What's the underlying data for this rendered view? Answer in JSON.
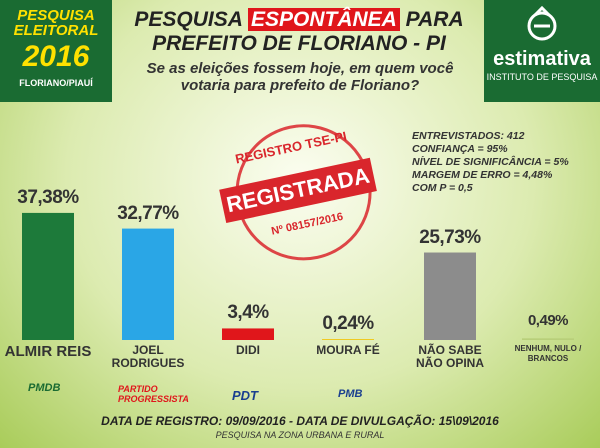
{
  "header": {
    "badge_top": "PESQUISA ELEITORAL",
    "badge_year": "2016",
    "badge_place": "FLORIANO/PIAUÍ",
    "title_start": "PESQUISA",
    "title_highlight": "ESPONTÂNEA",
    "title_end": "PARA",
    "title_line2": "PREFEITO DE FLORIANO - PI",
    "question": "Se as eleições fossem hoje, em quem você votaria para prefeito de Floriano?",
    "brand": "estimativa",
    "brand_sub": "INSTITUTO DE PESQUISA"
  },
  "stamp": {
    "top": "REGISTRO TSE-PI",
    "main": "REGISTRADA",
    "number": "Nº 08157/2016"
  },
  "stats": [
    "ENTREVISTADOS: 412",
    "CONFIANÇA = 95%",
    "NÍVEL DE SIGNIFICÂNCIA = 5%",
    "MARGEM DE ERRO = 4,48%",
    "COM P = 0,5"
  ],
  "parties": [
    "PMDB",
    "PARTIDO PROGRESSISTA",
    "PDT",
    "PMB"
  ],
  "footer": {
    "dates": "DATA DE REGISTRO: 09/09/2016 - DATA DE DIVULGAÇÃO: 15\\09\\2016",
    "note": "PESQUISA NA ZONA URBANA E RURAL"
  },
  "chart_data": {
    "type": "bar",
    "categories": [
      "ALMIR REIS",
      "JOEL RODRIGUES",
      "DIDI",
      "MOURA FÉ",
      "NÃO SABE NÃO OPINA",
      "NENHUM, NULO / BRANCOS"
    ],
    "values": [
      37.38,
      32.77,
      3.4,
      0.24,
      25.73,
      0.49
    ],
    "value_labels": [
      "37,38%",
      "32,77%",
      "3,4%",
      "0,24%",
      "25,73%",
      "0,49%"
    ],
    "colors": [
      "#1d7a3a",
      "#2aa6e6",
      "#e0161b",
      "#f2c200",
      "#8c8c8c",
      "#b8cf7a"
    ]
  }
}
